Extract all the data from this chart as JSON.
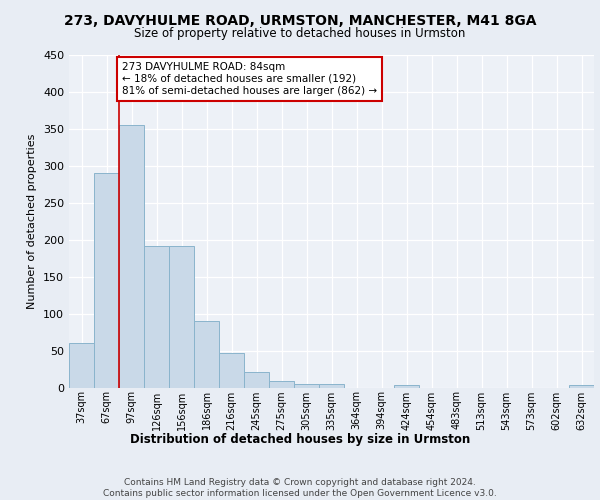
{
  "title1": "273, DAVYHULME ROAD, URMSTON, MANCHESTER, M41 8GA",
  "title2": "Size of property relative to detached houses in Urmston",
  "xlabel": "Distribution of detached houses by size in Urmston",
  "ylabel": "Number of detached properties",
  "bar_labels": [
    "37sqm",
    "67sqm",
    "97sqm",
    "126sqm",
    "156sqm",
    "186sqm",
    "216sqm",
    "245sqm",
    "275sqm",
    "305sqm",
    "335sqm",
    "364sqm",
    "394sqm",
    "424sqm",
    "454sqm",
    "483sqm",
    "513sqm",
    "543sqm",
    "573sqm",
    "602sqm",
    "632sqm"
  ],
  "bar_heights": [
    60,
    290,
    355,
    192,
    192,
    90,
    47,
    21,
    9,
    5,
    5,
    0,
    0,
    4,
    0,
    0,
    0,
    0,
    0,
    0,
    4
  ],
  "bar_color": "#c9d9e8",
  "bar_edge_color": "#8ab4cc",
  "vline_x": 1.5,
  "vline_color": "#cc0000",
  "annotation_text": "273 DAVYHULME ROAD: 84sqm\n← 18% of detached houses are smaller (192)\n81% of semi-detached houses are larger (862) →",
  "annotation_box_color": "#ffffff",
  "annotation_box_edge": "#cc0000",
  "bg_color": "#e8edf4",
  "plot_bg_color": "#edf1f7",
  "footer_text": "Contains HM Land Registry data © Crown copyright and database right 2024.\nContains public sector information licensed under the Open Government Licence v3.0.",
  "ylim": [
    0,
    450
  ],
  "yticks": [
    0,
    50,
    100,
    150,
    200,
    250,
    300,
    350,
    400,
    450
  ]
}
